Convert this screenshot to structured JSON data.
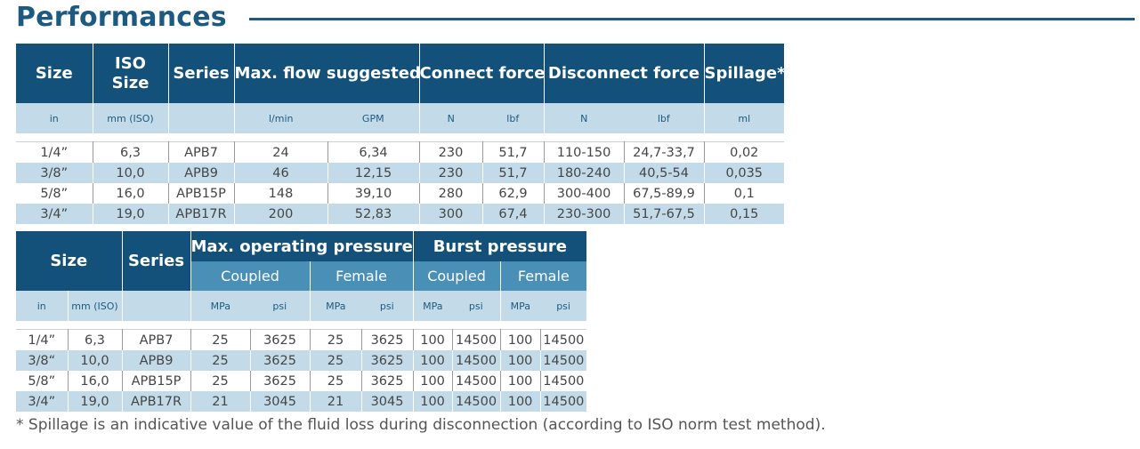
{
  "title": "Performances",
  "table1": {
    "headers": [
      "Size",
      "ISO\nSize",
      "Series",
      "Max. flow suggested",
      "Connect force",
      "Disconnect force",
      "Spillage*"
    ],
    "units": [
      "in",
      "mm (ISO)",
      "",
      "l/min",
      "GPM",
      "N",
      "lbf",
      "N",
      "lbf",
      "ml"
    ],
    "rows": [
      [
        "1/4”",
        "6,3",
        "APB7",
        "24",
        "6,34",
        "230",
        "51,7",
        "110-150",
        "24,7-33,7",
        "0,02"
      ],
      [
        "3/8”",
        "10,0",
        "APB9",
        "46",
        "12,15",
        "230",
        "51,7",
        "180-240",
        "40,5-54",
        "0,035"
      ],
      [
        "5/8”",
        "16,0",
        "APB15P",
        "148",
        "39,10",
        "280",
        "62,9",
        "300-400",
        "67,5-89,9",
        "0,1"
      ],
      [
        "3/4”",
        "19,0",
        "APB17R",
        "200",
        "52,83",
        "300",
        "67,4",
        "230-300",
        "51,7-67,5",
        "0,15"
      ]
    ]
  },
  "table2": {
    "headers": [
      "Size",
      "Series",
      "Max. operating pressure",
      "Burst pressure"
    ],
    "subheaders": [
      "Coupled",
      "Female",
      "Coupled",
      "Female"
    ],
    "units": [
      "in",
      "mm (ISO)",
      "",
      "MPa",
      "psi",
      "MPa",
      "psi",
      "MPa",
      "psi",
      "MPa",
      "psi"
    ],
    "rows": [
      [
        "1/4”",
        "6,3",
        "APB7",
        "25",
        "3625",
        "25",
        "3625",
        "100",
        "14500",
        "100",
        "14500"
      ],
      [
        "3/8“",
        "10,0",
        "APB9",
        "25",
        "3625",
        "25",
        "3625",
        "100",
        "14500",
        "100",
        "14500"
      ],
      [
        "5/8”",
        "16,0",
        "APB15P",
        "25",
        "3625",
        "25",
        "3625",
        "100",
        "14500",
        "100",
        "14500"
      ],
      [
        "3/4”",
        "19,0",
        "APB17R",
        "21",
        "3045",
        "21",
        "3045",
        "100",
        "14500",
        "100",
        "14500"
      ]
    ]
  },
  "footnote": "* Spillage is an indicative value of the fluid loss during disconnection (according to ISO norm test method).",
  "colors": {
    "header": "#13517a",
    "subheader": "#4a90b6",
    "band": "#c3dbe8",
    "title": "#1d5a82"
  }
}
